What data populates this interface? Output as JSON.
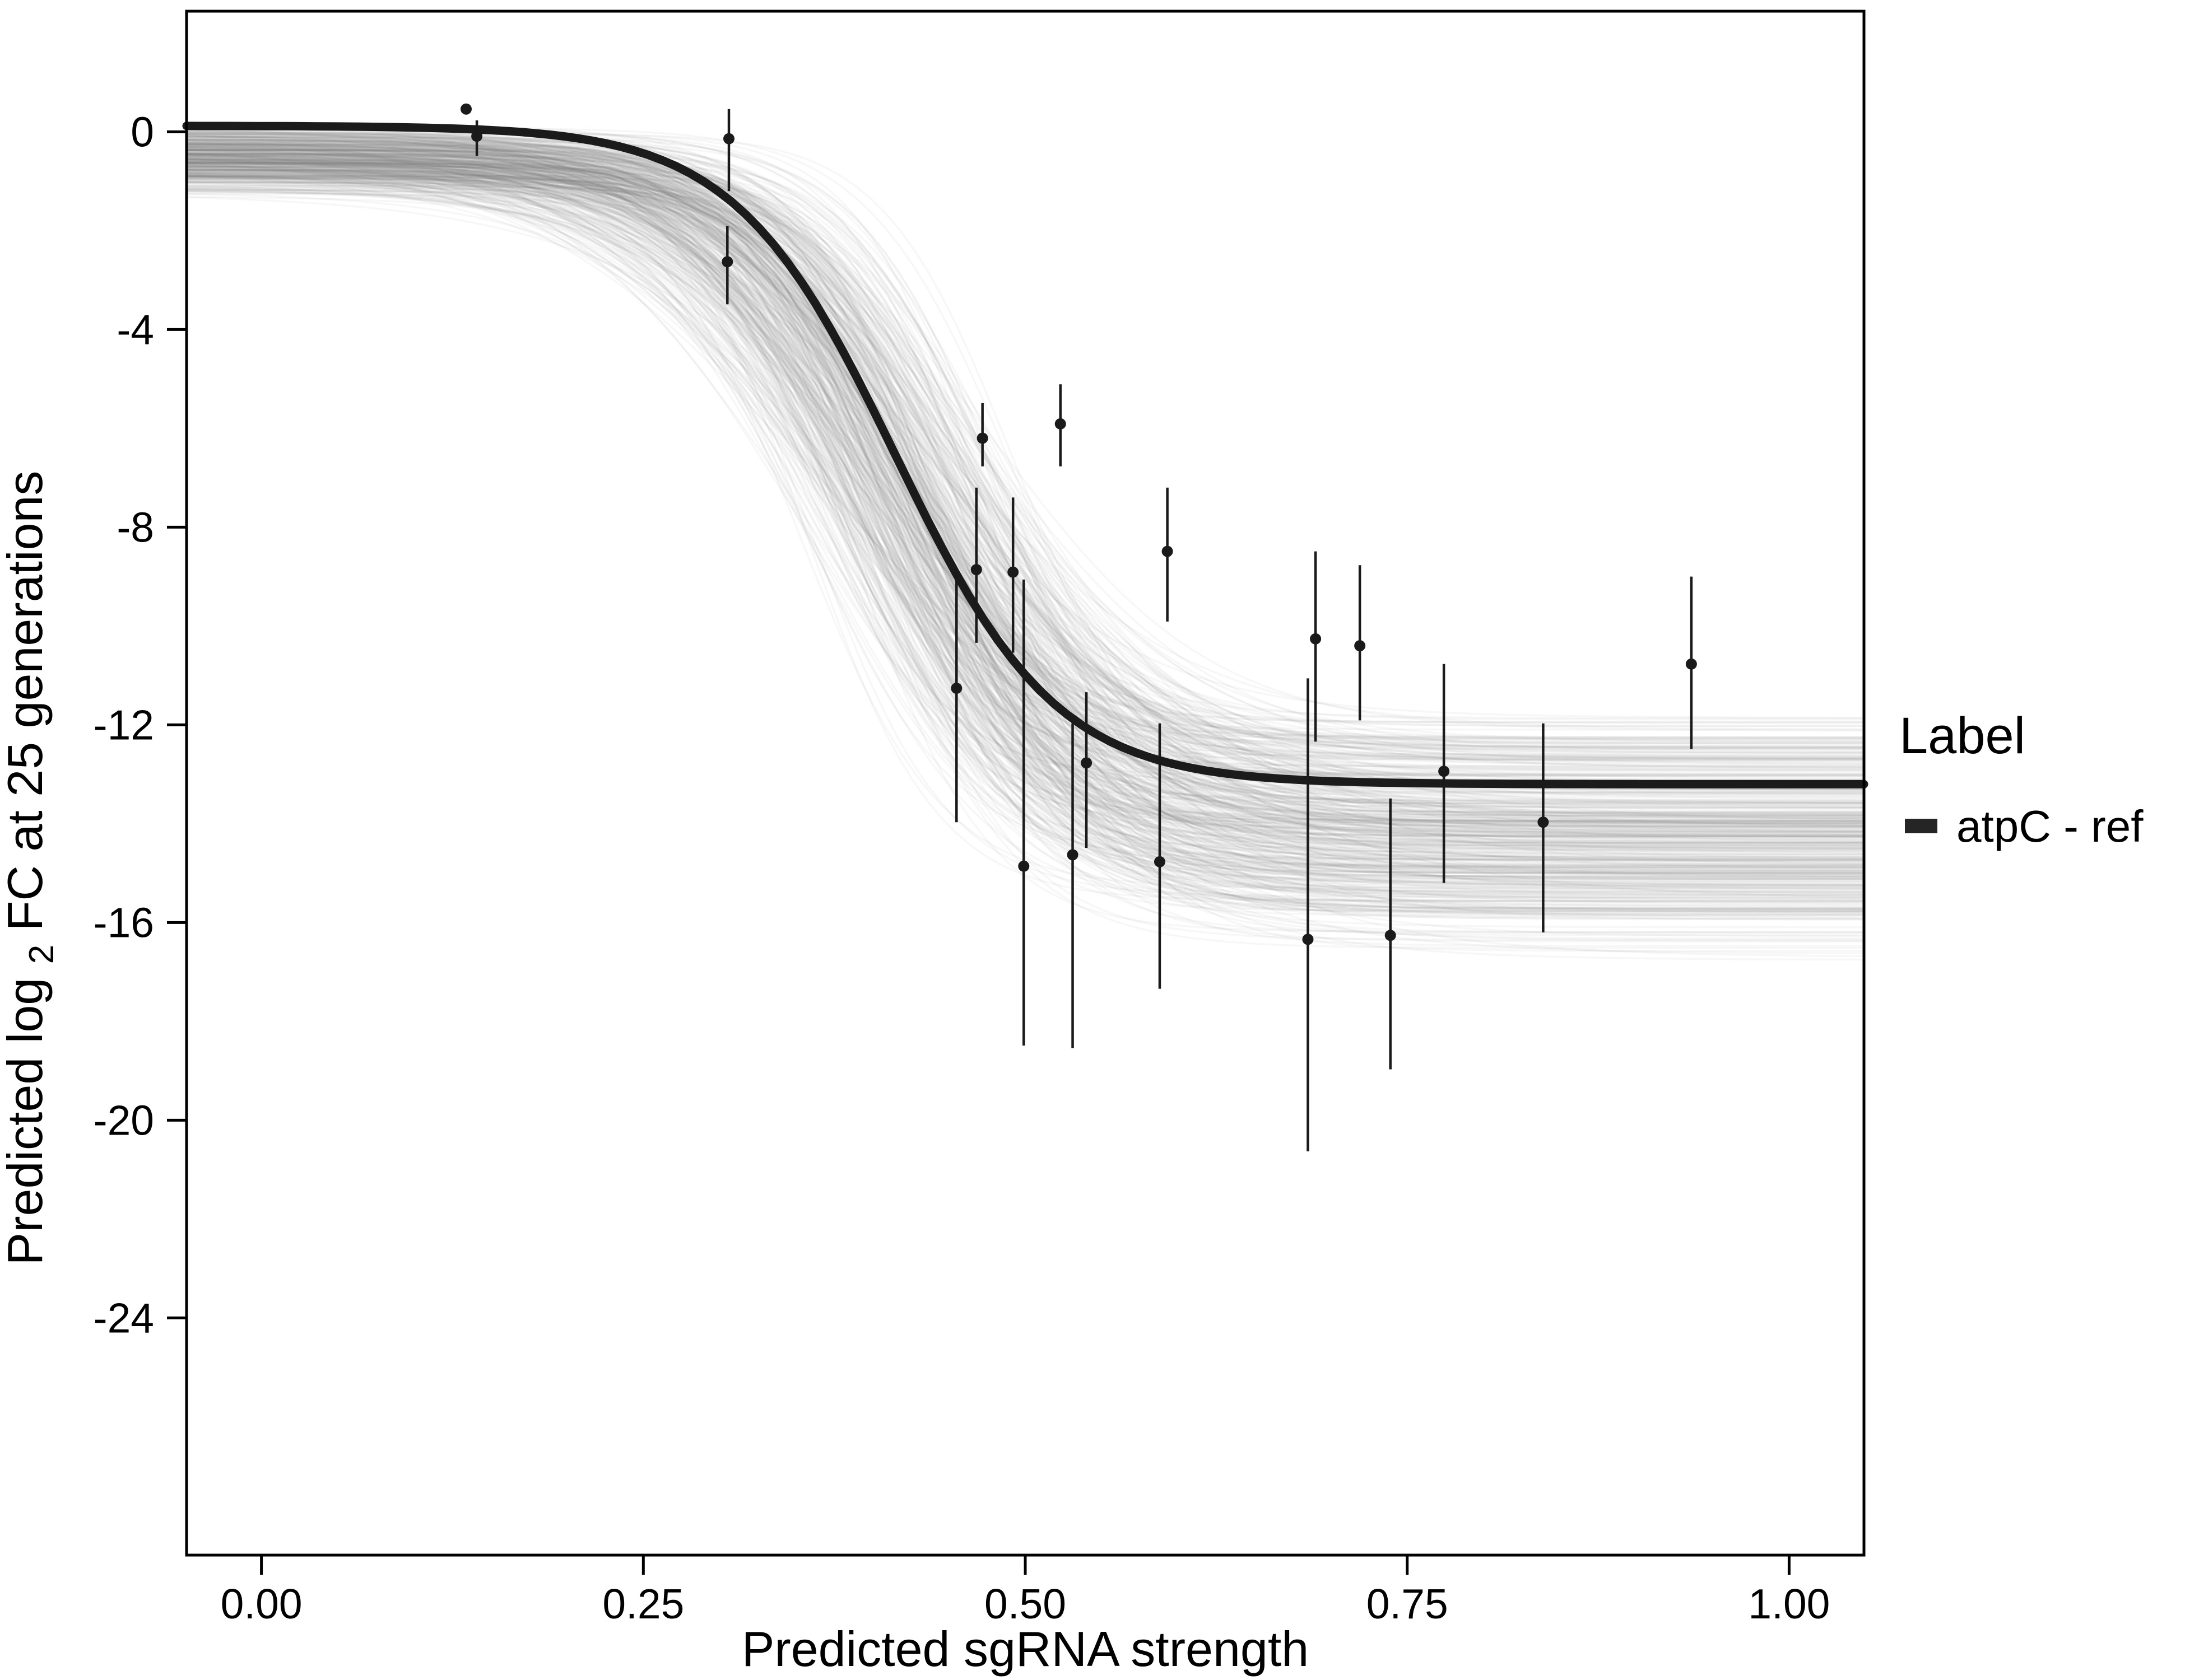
{
  "chart_data": {
    "type": "line",
    "title": "",
    "xlabel": "Predicted sgRNA strength",
    "ylabel_prefix": "Predicted  log",
    "ylabel_sub": "2",
    "ylabel_suffix": " FC at 25 generations",
    "x_domain": [
      -0.049,
      1.049
    ],
    "y_domain": [
      -28.8,
      2.44
    ],
    "x_ticks": [
      {
        "v": 0.0,
        "label": "0.00"
      },
      {
        "v": 0.25,
        "label": "0.25"
      },
      {
        "v": 0.5,
        "label": "0.50"
      },
      {
        "v": 0.75,
        "label": "0.75"
      },
      {
        "v": 1.0,
        "label": "1.00"
      }
    ],
    "y_ticks": [
      {
        "v": 0,
        "label": "0"
      },
      {
        "v": -4,
        "label": "-4"
      },
      {
        "v": -8,
        "label": "-8"
      },
      {
        "v": -12,
        "label": "-12"
      },
      {
        "v": -16,
        "label": "-16"
      },
      {
        "v": -20,
        "label": "-20"
      },
      {
        "v": -24,
        "label": "-24"
      }
    ],
    "grid": false,
    "legend": {
      "position": "right",
      "title": "Label",
      "entries": [
        {
          "label": "atpC - ref",
          "color": "#252525"
        }
      ]
    },
    "fit_curve": {
      "model": "sigmoid",
      "upper": 0.12,
      "lower": -13.2,
      "midpoint": 0.415,
      "slope": 19,
      "color": "#1b1b1b",
      "width": 15
    },
    "posterior_band": {
      "count": 450,
      "seed": 20,
      "upper_range": [
        0.25,
        -1.35
      ],
      "lower_range": [
        -11.6,
        -16.9
      ],
      "midpoint_range": [
        0.34,
        0.5
      ],
      "slope_range": [
        9,
        26
      ],
      "color": "#7d7d7d",
      "opacity": 0.06,
      "width": 3.5
    },
    "points": [
      {
        "x": 0.134,
        "y": 0.46,
        "lo": 0.46,
        "hi": 0.46
      },
      {
        "x": 0.141,
        "y": -0.09,
        "lo": -0.49,
        "hi": 0.23
      },
      {
        "x": 0.306,
        "y": -0.14,
        "lo": -1.2,
        "hi": 0.46
      },
      {
        "x": 0.305,
        "y": -2.63,
        "lo": -3.49,
        "hi": -1.91
      },
      {
        "x": 0.455,
        "y": -11.26,
        "lo": -13.97,
        "hi": -8.97
      },
      {
        "x": 0.472,
        "y": -6.2,
        "lo": -6.77,
        "hi": -5.49
      },
      {
        "x": 0.468,
        "y": -8.86,
        "lo": -10.34,
        "hi": -7.2
      },
      {
        "x": 0.492,
        "y": -8.91,
        "lo": -10.54,
        "hi": -7.4
      },
      {
        "x": 0.499,
        "y": -14.86,
        "lo": -18.49,
        "hi": -9.06
      },
      {
        "x": 0.523,
        "y": -5.91,
        "lo": -6.77,
        "hi": -5.11
      },
      {
        "x": 0.531,
        "y": -14.63,
        "lo": -18.54,
        "hi": -11.97
      },
      {
        "x": 0.54,
        "y": -12.77,
        "lo": -14.49,
        "hi": -11.34
      },
      {
        "x": 0.593,
        "y": -8.49,
        "lo": -9.91,
        "hi": -7.2
      },
      {
        "x": 0.588,
        "y": -14.77,
        "lo": -17.34,
        "hi": -11.97
      },
      {
        "x": 0.69,
        "y": -10.26,
        "lo": -12.34,
        "hi": -8.49
      },
      {
        "x": 0.685,
        "y": -16.34,
        "lo": -20.63,
        "hi": -11.06
      },
      {
        "x": 0.719,
        "y": -10.4,
        "lo": -11.91,
        "hi": -8.77
      },
      {
        "x": 0.739,
        "y": -16.26,
        "lo": -18.97,
        "hi": -13.49
      },
      {
        "x": 0.774,
        "y": -12.94,
        "lo": -15.2,
        "hi": -10.77
      },
      {
        "x": 0.839,
        "y": -13.97,
        "lo": -16.2,
        "hi": -11.97
      },
      {
        "x": 0.936,
        "y": -10.77,
        "lo": -12.49,
        "hi": -9.0
      }
    ],
    "point_style": {
      "color": "#1a1a1a",
      "radius": 10,
      "errorbar_width": 4.5
    }
  }
}
